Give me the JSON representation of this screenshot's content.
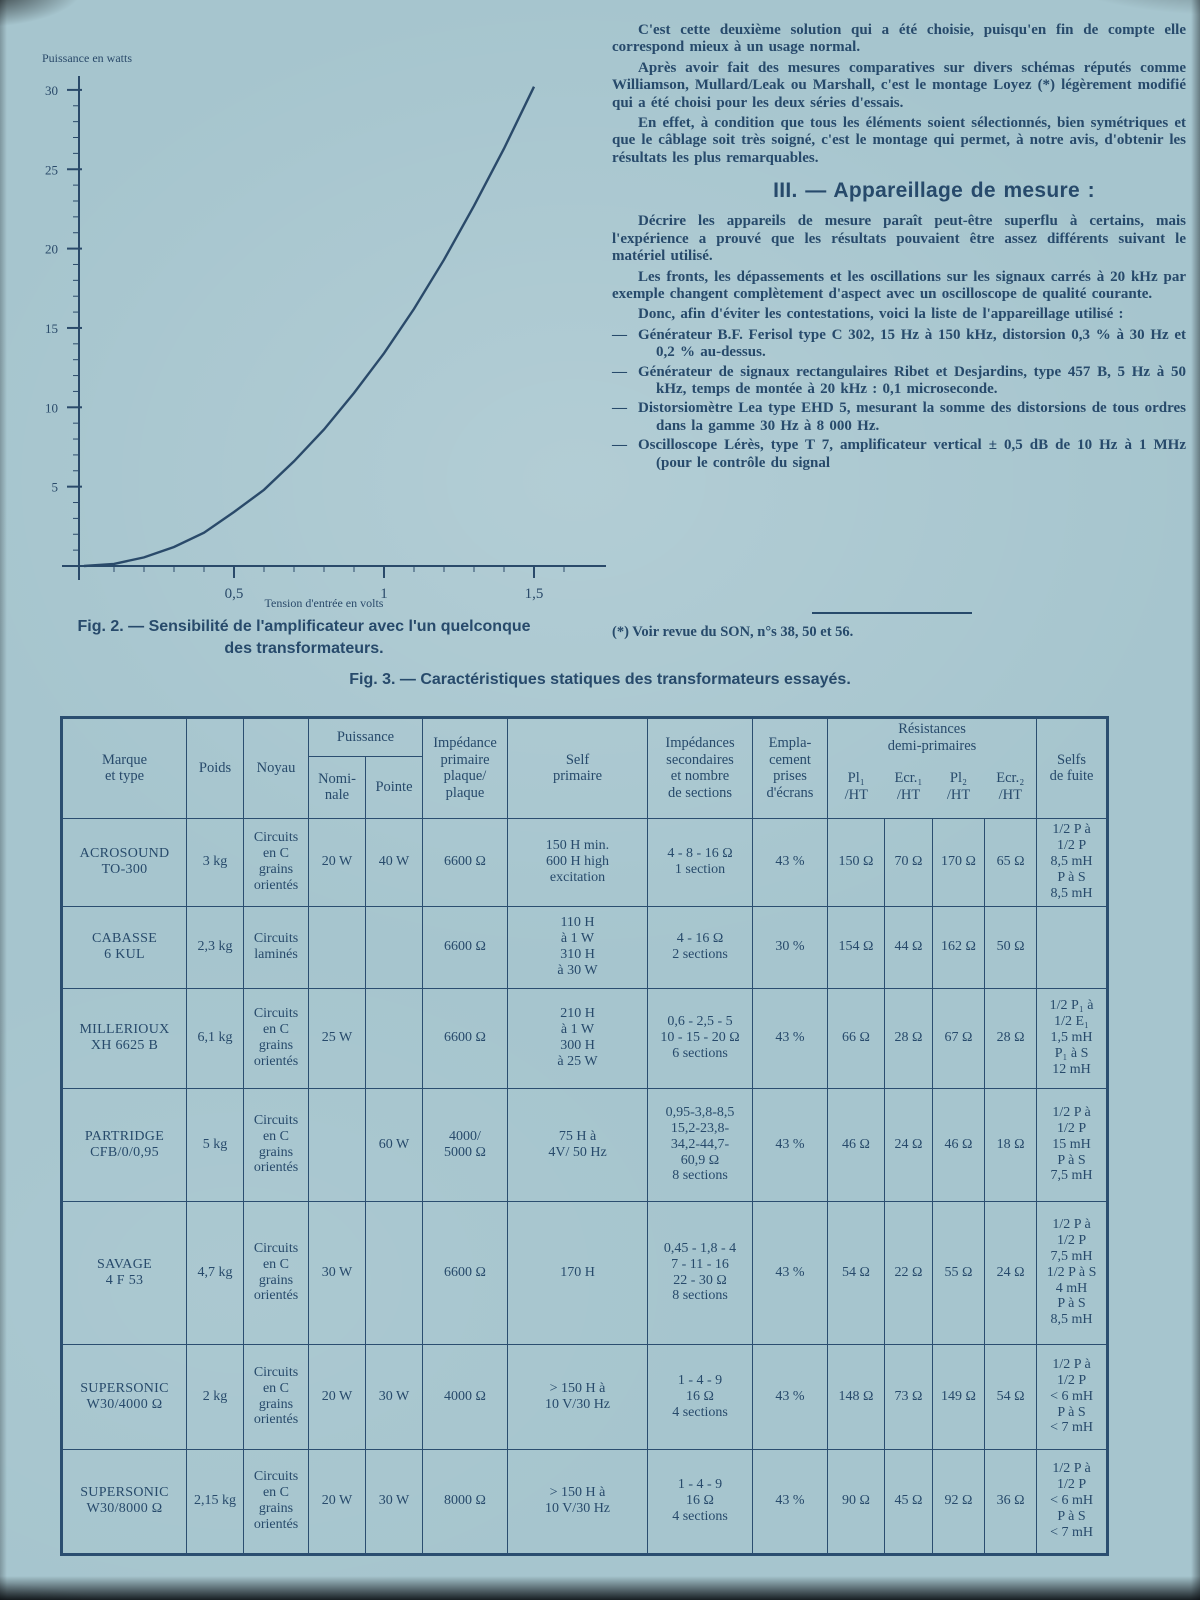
{
  "chart_data": {
    "type": "line",
    "title": "Sensibilité de l'amplificateur",
    "xlabel": "Tension d'entrée en volts",
    "ylabel": "Puissance en watts",
    "xlim": [
      0,
      1.65
    ],
    "ylim": [
      0,
      31
    ],
    "x_ticks": [
      0.5,
      1,
      1.5
    ],
    "x_tick_labels": [
      "0,5",
      "1",
      "1,5"
    ],
    "y_ticks": [
      5,
      10,
      15,
      20,
      25,
      30
    ],
    "grid": false,
    "points": [
      [
        0,
        0
      ],
      [
        0.1,
        0.13
      ],
      [
        0.2,
        0.54
      ],
      [
        0.3,
        1.2
      ],
      [
        0.4,
        2.1
      ],
      [
        0.5,
        3.4
      ],
      [
        0.6,
        4.8
      ],
      [
        0.7,
        6.6
      ],
      [
        0.8,
        8.6
      ],
      [
        0.9,
        10.9
      ],
      [
        1.0,
        13.4
      ],
      [
        1.1,
        16.2
      ],
      [
        1.2,
        19.3
      ],
      [
        1.3,
        22.7
      ],
      [
        1.4,
        26.3
      ],
      [
        1.5,
        30.2
      ]
    ]
  },
  "figure2": {
    "caption_line1": "Fig. 2. — Sensibilité de l'amplificateur avec l'un quelconque",
    "caption_line2": "des transformateurs."
  },
  "article": {
    "paragraphs": [
      "C'est cette deuxième solution qui a été choisie, puisqu'en fin de compte elle correspond mieux à un usage normal.",
      "Après avoir fait des mesures comparatives sur divers schémas réputés comme Williamson, Mullard/Leak ou Marshall, c'est le montage Loyez (*) légèrement modifié qui a été choisi pour les deux séries d'essais.",
      "En effet, à condition que tous les éléments soient sélectionnés, bien symétriques et que le câblage soit très soigné, c'est le montage qui permet, à notre avis, d'obtenir les résultats les plus remarquables."
    ],
    "heading": "III. — Appareillage de mesure :",
    "paragraphs2": [
      "Décrire les appareils de mesure paraît peut-être superflu à certains, mais l'expérience a prouvé que les résultats pouvaient être assez différents suivant le matériel utilisé.",
      "Les fronts, les dépassements et les oscillations sur les signaux carrés à 20 kHz par exemple changent complètement d'aspect avec un oscilloscope de qualité courante.",
      "Donc, afin d'éviter les contestations, voici la liste de l'appareillage utilisé :"
    ],
    "list": [
      "Générateur B.F. Ferisol type C 302, 15 Hz à 150 kHz, distorsion 0,3 % à 30 Hz et 0,2 % au-dessus.",
      "Générateur de signaux rectangulaires Ribet et Desjardins, type 457 B, 5 Hz à 50 kHz, temps de montée à 20 kHz : 0,1 microseconde.",
      "Distorsiomètre Lea type EHD 5, mesurant la somme des distorsions de tous ordres dans la gamme 30 Hz à 8 000 Hz.",
      "Oscilloscope Lérès, type T 7, amplificateur vertical ± 0,5 dB de 10 Hz à 1 MHz (pour le contrôle du signal"
    ],
    "footnote": "(*) Voir revue du SON, n°s 38, 50 et 56."
  },
  "figure3": {
    "caption": "Fig. 3. — Caractéristiques statiques des transformateurs essayés."
  },
  "table": {
    "headers": {
      "marque": "Marque\net type",
      "poids": "Poids",
      "noyau": "Noyau",
      "puissance": "Puissance",
      "nominale": "Nomi-\nnale",
      "pointe": "Pointe",
      "impedance": "Impédance\nprimaire\nplaque/\nplaque",
      "self": "Self\nprimaire",
      "secondaires": "Impédances\nsecondaires\net nombre\nde sections",
      "emplacement": "Empla-\ncement\nprises\nd'écrans",
      "resistances": "Résistances\ndemi-primaires",
      "r1": "Pl₁\n/HT",
      "r2": "Ecr.₁\n/HT",
      "r3": "Pl₂\n/HT",
      "r4": "Ecr.₂\n/HT",
      "selfs": "Selfs\nde fuite"
    },
    "rows": [
      [
        "ACROSOUND\nTO-300",
        "3 kg",
        "Circuits\nen C\ngrains\norientés",
        "20 W",
        "40 W",
        "6600 Ω",
        "150 H min.\n600 H high\nexcitation",
        "4 - 8 - 16 Ω\n1 section",
        "43 %",
        "150 Ω",
        "70 Ω",
        "170 Ω",
        "65 Ω",
        "1/2 P à\n1/2 P\n8,5 mH\nP à S\n8,5 mH"
      ],
      [
        "CABASSE\n6 KUL",
        "2,3 kg",
        "Circuits\nlaminés",
        "",
        "",
        "6600 Ω",
        "110 H\nà 1 W\n310 H\nà 30 W",
        "4 - 16 Ω\n2 sections",
        "30 %",
        "154 Ω",
        "44 Ω",
        "162 Ω",
        "50 Ω",
        ""
      ],
      [
        "MILLERIOUX\nXH 6625 B",
        "6,1 kg",
        "Circuits\nen C\ngrains\norientés",
        "25 W",
        "",
        "6600 Ω",
        "210 H\nà 1 W\n300 H\nà 25 W",
        "0,6 - 2,5 - 5\n10 - 15 - 20 Ω\n6 sections",
        "43 %",
        "66 Ω",
        "28 Ω",
        "67 Ω",
        "28 Ω",
        "1/2 P₁ à\n1/2 E₁\n1,5 mH\nP₁ à S\n12 mH"
      ],
      [
        "PARTRIDGE\nCFB/0/0,95",
        "5 kg",
        "Circuits\nen C\ngrains\norientés",
        "",
        "60 W",
        "4000/\n5000 Ω",
        "75 H à\n4V/ 50 Hz",
        "0,95-3,8-8,5\n15,2-23,8-\n34,2-44,7-\n60,9 Ω\n8 sections",
        "43 %",
        "46 Ω",
        "24 Ω",
        "46 Ω",
        "18 Ω",
        "1/2 P à\n1/2 P\n15 mH\nP à S\n7,5 mH"
      ],
      [
        "SAVAGE\n4 F 53",
        "4,7 kg",
        "Circuits\nen C\ngrains\norientés",
        "30 W",
        "",
        "6600 Ω",
        "170 H",
        "0,45 - 1,8 - 4\n7 - 11 - 16\n22 - 30 Ω\n8 sections",
        "43 %",
        "54 Ω",
        "22 Ω",
        "55 Ω",
        "24 Ω",
        "1/2 P à\n1/2 P\n7,5 mH\n1/2 P à S\n4 mH\nP à S\n8,5 mH"
      ],
      [
        "SUPERSONIC\nW30/4000 Ω",
        "2 kg",
        "Circuits\nen C\ngrains\norientés",
        "20 W",
        "30 W",
        "4000 Ω",
        "> 150 H à\n10 V/30 Hz",
        "1 - 4 - 9\n16 Ω\n4 sections",
        "43 %",
        "148 Ω",
        "73 Ω",
        "149 Ω",
        "54 Ω",
        "1/2 P à\n1/2 P\n< 6 mH\nP à S\n< 7 mH"
      ],
      [
        "SUPERSONIC\nW30/8000 Ω",
        "2,15 kg",
        "Circuits\nen C\ngrains\norientés",
        "20 W",
        "30 W",
        "8000 Ω",
        "> 150 H à\n10 V/30 Hz",
        "1 - 4 - 9\n16 Ω\n4 sections",
        "43 %",
        "90 Ω",
        "45 Ω",
        "92 Ω",
        "36 Ω",
        "1/2 P à\n1/2 P\n< 6 mH\nP à S\n< 7 mH"
      ]
    ]
  }
}
